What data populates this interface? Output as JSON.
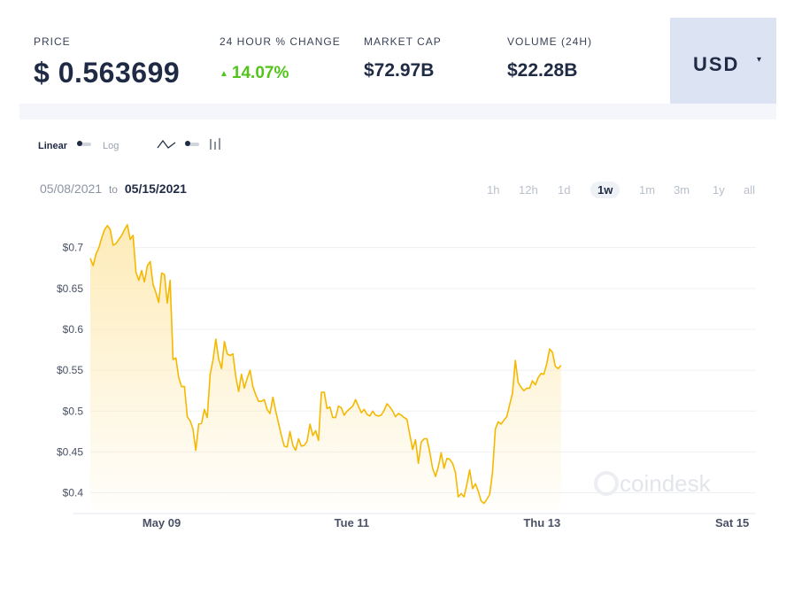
{
  "header": {
    "price_label": "PRICE",
    "price_value": "$ 0.563699",
    "change_label": "24 HOUR % CHANGE",
    "change_arrow": "▲",
    "change_value": "14.07%",
    "mcap_label": "MARKET CAP",
    "mcap_value": "$72.97B",
    "volume_label": "VOLUME (24H)",
    "volume_value": "$22.28B",
    "currency": "USD",
    "currency_caret": "▾"
  },
  "controls": {
    "linear_label": "Linear",
    "log_label": "Log"
  },
  "date_range": {
    "from": "05/08/2021",
    "to_word": "to",
    "to": "05/15/2021"
  },
  "ranges": [
    "1h",
    "12h",
    "1d",
    "1w",
    "1m",
    "3m",
    "1y",
    "all"
  ],
  "active_range": "1w",
  "watermark": "coindesk",
  "colors": {
    "line": "#f5b800",
    "fill_top": "#fde9b0",
    "positive": "#52c41a",
    "text": "#1f2a44",
    "muted": "#b9c0cc",
    "currency_bg": "#dce3f3"
  },
  "chart_data": {
    "type": "area",
    "ylim": [
      0.38,
      0.73
    ],
    "y_ticks": [
      "$0.4",
      "$0.45",
      "$0.5",
      "$0.55",
      "$0.6",
      "$0.65",
      "$0.7"
    ],
    "y_tick_values": [
      0.4,
      0.45,
      0.5,
      0.55,
      0.6,
      0.65,
      0.7
    ],
    "x_ticks": [
      "May 09",
      "Tue 11",
      "Thu 13",
      "Sat 15"
    ],
    "x_tick_positions": [
      0.75,
      2.75,
      4.75,
      6.75
    ],
    "xlim": [
      0,
      7
    ],
    "grid": true,
    "series": [
      {
        "values": [
          [
            0.0,
            0.687
          ],
          [
            0.03,
            0.678
          ],
          [
            0.06,
            0.692
          ],
          [
            0.09,
            0.7
          ],
          [
            0.12,
            0.712
          ],
          [
            0.15,
            0.722
          ],
          [
            0.18,
            0.727
          ],
          [
            0.21,
            0.722
          ],
          [
            0.24,
            0.703
          ],
          [
            0.27,
            0.705
          ],
          [
            0.3,
            0.71
          ],
          [
            0.33,
            0.715
          ],
          [
            0.36,
            0.722
          ],
          [
            0.39,
            0.728
          ],
          [
            0.42,
            0.71
          ],
          [
            0.45,
            0.715
          ],
          [
            0.48,
            0.67
          ],
          [
            0.51,
            0.66
          ],
          [
            0.54,
            0.672
          ],
          [
            0.57,
            0.658
          ],
          [
            0.6,
            0.678
          ],
          [
            0.63,
            0.683
          ],
          [
            0.66,
            0.655
          ],
          [
            0.69,
            0.645
          ],
          [
            0.72,
            0.633
          ],
          [
            0.75,
            0.669
          ],
          [
            0.78,
            0.667
          ],
          [
            0.81,
            0.632
          ],
          [
            0.84,
            0.66
          ],
          [
            0.87,
            0.563
          ],
          [
            0.9,
            0.565
          ],
          [
            0.93,
            0.541
          ],
          [
            0.96,
            0.53
          ],
          [
            0.99,
            0.53
          ],
          [
            1.02,
            0.493
          ],
          [
            1.05,
            0.488
          ],
          [
            1.08,
            0.478
          ],
          [
            1.11,
            0.452
          ],
          [
            1.14,
            0.484
          ],
          [
            1.17,
            0.485
          ],
          [
            1.2,
            0.502
          ],
          [
            1.23,
            0.492
          ],
          [
            1.26,
            0.545
          ],
          [
            1.29,
            0.562
          ],
          [
            1.32,
            0.588
          ],
          [
            1.35,
            0.564
          ],
          [
            1.38,
            0.552
          ],
          [
            1.41,
            0.585
          ],
          [
            1.44,
            0.57
          ],
          [
            1.47,
            0.568
          ],
          [
            1.5,
            0.57
          ],
          [
            1.53,
            0.542
          ],
          [
            1.56,
            0.524
          ],
          [
            1.59,
            0.545
          ],
          [
            1.62,
            0.528
          ],
          [
            1.65,
            0.54
          ],
          [
            1.68,
            0.55
          ],
          [
            1.71,
            0.53
          ],
          [
            1.74,
            0.52
          ],
          [
            1.77,
            0.512
          ],
          [
            1.8,
            0.512
          ],
          [
            1.83,
            0.514
          ],
          [
            1.86,
            0.502
          ],
          [
            1.89,
            0.497
          ],
          [
            1.92,
            0.517
          ],
          [
            1.95,
            0.5
          ],
          [
            1.98,
            0.485
          ],
          [
            2.01,
            0.47
          ],
          [
            2.04,
            0.457
          ],
          [
            2.07,
            0.456
          ],
          [
            2.1,
            0.475
          ],
          [
            2.13,
            0.458
          ],
          [
            2.16,
            0.452
          ],
          [
            2.19,
            0.466
          ],
          [
            2.22,
            0.457
          ],
          [
            2.25,
            0.458
          ],
          [
            2.28,
            0.463
          ],
          [
            2.31,
            0.484
          ],
          [
            2.34,
            0.47
          ],
          [
            2.37,
            0.476
          ],
          [
            2.4,
            0.464
          ],
          [
            2.43,
            0.523
          ],
          [
            2.46,
            0.523
          ],
          [
            2.49,
            0.503
          ],
          [
            2.52,
            0.505
          ],
          [
            2.55,
            0.492
          ],
          [
            2.58,
            0.492
          ],
          [
            2.61,
            0.506
          ],
          [
            2.64,
            0.504
          ],
          [
            2.67,
            0.495
          ],
          [
            2.7,
            0.5
          ],
          [
            2.73,
            0.503
          ],
          [
            2.76,
            0.506
          ],
          [
            2.79,
            0.514
          ],
          [
            2.82,
            0.506
          ],
          [
            2.85,
            0.498
          ],
          [
            2.88,
            0.502
          ],
          [
            2.91,
            0.496
          ],
          [
            2.94,
            0.494
          ],
          [
            2.97,
            0.5
          ],
          [
            3.0,
            0.495
          ],
          [
            3.03,
            0.494
          ],
          [
            3.06,
            0.495
          ],
          [
            3.09,
            0.501
          ],
          [
            3.12,
            0.509
          ],
          [
            3.15,
            0.505
          ],
          [
            3.18,
            0.5
          ],
          [
            3.21,
            0.493
          ],
          [
            3.24,
            0.497
          ],
          [
            3.27,
            0.495
          ],
          [
            3.3,
            0.492
          ],
          [
            3.33,
            0.49
          ],
          [
            3.36,
            0.471
          ],
          [
            3.39,
            0.453
          ],
          [
            3.42,
            0.465
          ],
          [
            3.45,
            0.436
          ],
          [
            3.48,
            0.462
          ],
          [
            3.51,
            0.466
          ],
          [
            3.54,
            0.466
          ],
          [
            3.57,
            0.45
          ],
          [
            3.6,
            0.43
          ],
          [
            3.63,
            0.42
          ],
          [
            3.66,
            0.432
          ],
          [
            3.69,
            0.449
          ],
          [
            3.72,
            0.43
          ],
          [
            3.75,
            0.442
          ],
          [
            3.78,
            0.441
          ],
          [
            3.81,
            0.436
          ],
          [
            3.84,
            0.425
          ],
          [
            3.87,
            0.395
          ],
          [
            3.9,
            0.399
          ],
          [
            3.93,
            0.395
          ],
          [
            3.96,
            0.41
          ],
          [
            3.99,
            0.428
          ],
          [
            4.02,
            0.405
          ],
          [
            4.05,
            0.411
          ],
          [
            4.08,
            0.402
          ],
          [
            4.11,
            0.39
          ],
          [
            4.14,
            0.387
          ],
          [
            4.17,
            0.392
          ],
          [
            4.2,
            0.398
          ],
          [
            4.23,
            0.425
          ],
          [
            4.26,
            0.478
          ],
          [
            4.29,
            0.487
          ],
          [
            4.32,
            0.484
          ],
          [
            4.35,
            0.489
          ],
          [
            4.38,
            0.493
          ],
          [
            4.41,
            0.508
          ],
          [
            4.44,
            0.522
          ],
          [
            4.47,
            0.562
          ],
          [
            4.5,
            0.535
          ],
          [
            4.53,
            0.529
          ],
          [
            4.56,
            0.525
          ],
          [
            4.59,
            0.528
          ],
          [
            4.62,
            0.528
          ],
          [
            4.65,
            0.537
          ],
          [
            4.68,
            0.532
          ],
          [
            4.71,
            0.541
          ],
          [
            4.74,
            0.546
          ],
          [
            4.77,
            0.545
          ],
          [
            4.8,
            0.558
          ],
          [
            4.83,
            0.576
          ],
          [
            4.86,
            0.572
          ],
          [
            4.89,
            0.555
          ],
          [
            4.92,
            0.552
          ],
          [
            4.95,
            0.556
          ]
        ]
      }
    ]
  }
}
